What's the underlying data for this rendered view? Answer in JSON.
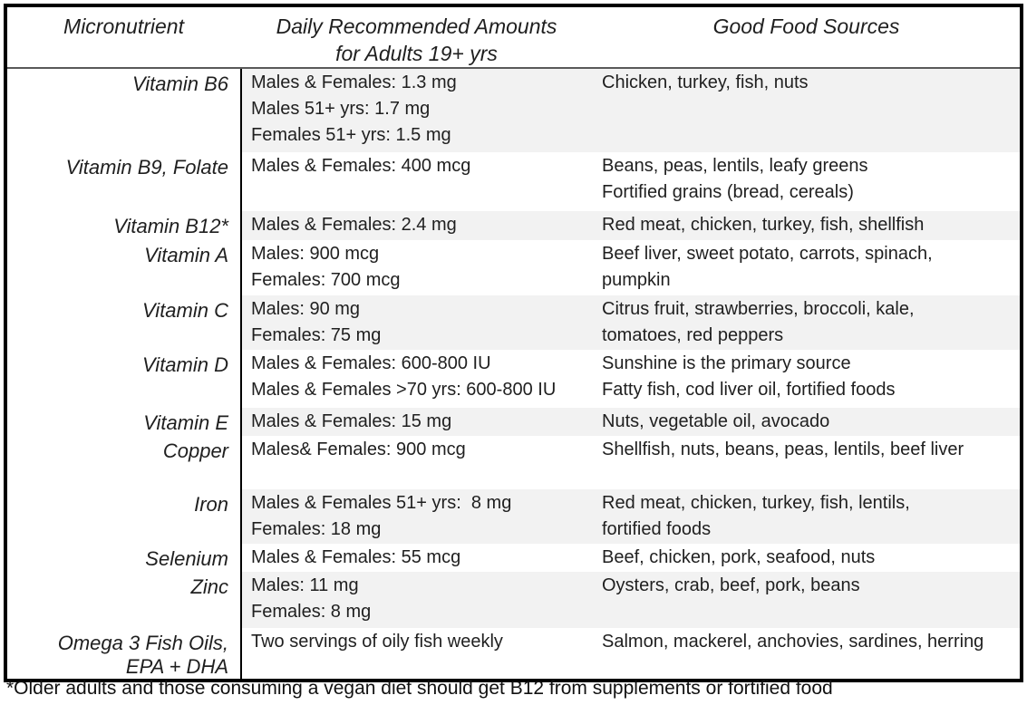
{
  "table": {
    "headers": {
      "micronutrient": "Micronutrient",
      "amounts_line1": "Daily Recommended Amounts",
      "amounts_line2": "for Adults 19+ yrs",
      "sources": "Good Food Sources"
    },
    "rows": [
      {
        "name": "Vitamin B6",
        "amounts": [
          "Males & Females: 1.3 mg",
          "Males 51+ yrs: 1.7 mg",
          "Females 51+ yrs: 1.5 mg"
        ],
        "sources": [
          "Chicken, turkey, fish, nuts"
        ]
      },
      {
        "name": "Vitamin B9, Folate",
        "amounts": [
          "Males & Females: 400 mcg"
        ],
        "sources": [
          "Beans, peas, lentils, leafy greens",
          "Fortified grains (bread, cereals)"
        ]
      },
      {
        "name": "Vitamin B12*",
        "amounts": [
          "Males & Females: 2.4 mg"
        ],
        "sources": [
          "Red meat, chicken, turkey, fish, shellfish"
        ]
      },
      {
        "name": "Vitamin A",
        "amounts": [
          "Males: 900 mcg",
          "Females: 700 mcg"
        ],
        "sources": [
          "Beef liver, sweet potato, carrots, spinach,",
          "pumpkin"
        ]
      },
      {
        "name": "Vitamin C",
        "amounts": [
          "Males: 90 mg",
          "Females: 75 mg"
        ],
        "sources": [
          "Citrus fruit, strawberries, broccoli, kale,",
          "tomatoes, red peppers"
        ]
      },
      {
        "name": "Vitamin D",
        "amounts": [
          "Males & Females: 600-800 IU",
          "Males & Females >70 yrs: 600-800 IU"
        ],
        "sources": [
          "Sunshine is the primary source",
          "Fatty fish, cod liver oil, fortified foods"
        ]
      },
      {
        "name": "Vitamin E",
        "amounts": [
          "Males & Females: 15 mg"
        ],
        "sources": [
          "Nuts, vegetable oil, avocado"
        ]
      },
      {
        "name": "Copper",
        "amounts": [
          "Males& Females: 900 mcg"
        ],
        "sources": [
          "Shellfish, nuts, beans, peas, lentils, beef liver"
        ]
      },
      {
        "name": "Iron",
        "amounts": [
          "Males & Females 51+ yrs:  8 mg",
          "Females: 18 mg"
        ],
        "sources": [
          "Red meat, chicken, turkey, fish, lentils,",
          "fortified foods"
        ]
      },
      {
        "name": "Selenium",
        "amounts": [
          "Males & Females: 55 mcg"
        ],
        "sources": [
          "Beef, chicken, pork, seafood, nuts"
        ]
      },
      {
        "name": "Zinc",
        "amounts": [
          "Males: 11 mg",
          "Females: 8 mg"
        ],
        "sources": [
          "Oysters, crab, beef, pork, beans"
        ]
      },
      {
        "name": "Omega 3 Fish Oils,\nEPA + DHA",
        "amounts": [
          "Two servings of oily fish weekly"
        ],
        "sources": [
          "Salmon, mackerel, anchovies, sardines, herring"
        ]
      }
    ],
    "footnote": "*Older adults and those consuming a vegan diet should get B12 from supplements or fortified food"
  },
  "colors": {
    "shaded_row": "#f2f2f2",
    "border": "#000000",
    "header_rule": "#595959",
    "text": "#1f1f1f"
  }
}
